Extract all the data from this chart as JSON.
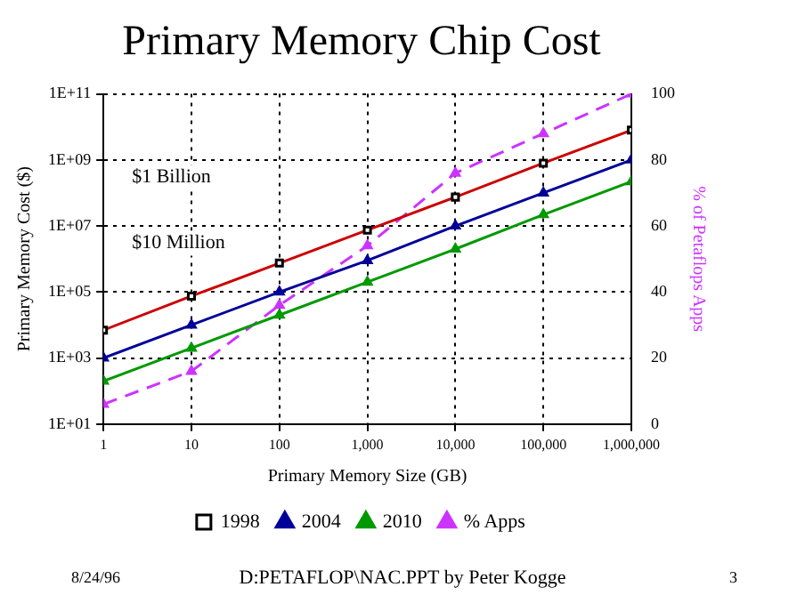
{
  "chart_data": {
    "type": "line",
    "title": "Primary Memory Chip Cost",
    "xlabel": "Primary Memory Size (GB)",
    "ylabel": "Primary Memory Cost ($)",
    "y2label": "% of Petaflops Apps",
    "x": [
      1,
      10,
      100,
      1000,
      10000,
      100000,
      1000000
    ],
    "series": [
      {
        "name": "1998",
        "color": "#cc0000",
        "marker": "square",
        "values": [
          7000,
          75000,
          750000,
          7500000,
          75000000,
          800000000,
          8000000000
        ]
      },
      {
        "name": "2004",
        "color": "#000099",
        "marker": "triangle",
        "values": [
          1000,
          10000,
          100000,
          900000,
          10000000,
          100000000,
          1000000000
        ]
      },
      {
        "name": "2010",
        "color": "#009900",
        "marker": "triangle",
        "values": [
          200,
          2000,
          20000,
          200000,
          2000000,
          22000000,
          220000000
        ]
      },
      {
        "name": "% Apps",
        "color": "#cc33ff",
        "marker": "triangle",
        "line_style": "dashed",
        "axis": "y2",
        "values": [
          6,
          16,
          36,
          54,
          76,
          88,
          100
        ]
      }
    ],
    "xlim": [
      1,
      1000000
    ],
    "xticks": [
      {
        "value": 1,
        "label": "1"
      },
      {
        "value": 10,
        "label": "10"
      },
      {
        "value": 100,
        "label": "100"
      },
      {
        "value": 1000,
        "label": "1,000"
      },
      {
        "value": 10000,
        "label": "10,000"
      },
      {
        "value": 100000,
        "label": "100,000"
      },
      {
        "value": 1000000,
        "label": "1,000,000"
      }
    ],
    "ylim": [
      10,
      100000000000
    ],
    "yticks": [
      {
        "value": 10,
        "label": "1E+01"
      },
      {
        "value": 1000,
        "label": "1E+03"
      },
      {
        "value": 100000,
        "label": "1E+05"
      },
      {
        "value": 10000000,
        "label": "1E+07"
      },
      {
        "value": 1000000000,
        "label": "1E+09"
      },
      {
        "value": 100000000000,
        "label": "1E+11"
      }
    ],
    "y2lim": [
      0,
      100
    ],
    "y2ticks": [
      0,
      20,
      40,
      60,
      80,
      100
    ],
    "log": "xy",
    "grid": true,
    "legend": "bottom",
    "annotations": [
      "$1 Billion",
      "$10 Million",
      "8/24/96",
      "D:PETAFLOP\\NAC.PPT by Peter Kogge",
      "3"
    ]
  }
}
